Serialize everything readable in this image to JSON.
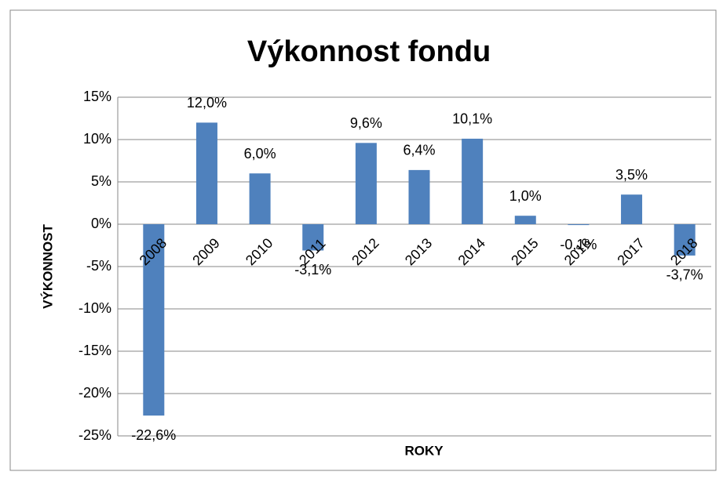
{
  "chart_data": {
    "type": "bar",
    "title": "Výkonnost fondu",
    "x_label": "ROKY",
    "y_label": "VÝKONNOST",
    "categories": [
      "2008",
      "2009",
      "2010",
      "2011",
      "2012",
      "2013",
      "2014",
      "2015",
      "2016",
      "2017",
      "2018"
    ],
    "values": [
      -22.6,
      12.0,
      6.0,
      -3.1,
      9.6,
      6.4,
      10.1,
      1.0,
      -0.1,
      3.5,
      -3.7
    ],
    "value_labels": [
      "-22,6%",
      "12,0%",
      "6,0%",
      "-3,1%",
      "9,6%",
      "6,4%",
      "10,1%",
      "1,0%",
      "-0,1%",
      "3,5%",
      "-3,7%"
    ],
    "color": "#4f81bd",
    "ylim": [
      -25,
      15
    ],
    "yticks": [
      {
        "value": -25,
        "label": "-25%"
      },
      {
        "value": -20,
        "label": "-20%"
      },
      {
        "value": -15,
        "label": "-15%"
      },
      {
        "value": -10,
        "label": "-10%"
      },
      {
        "value": -5,
        "label": "-5%"
      },
      {
        "value": 0,
        "label": "0%"
      },
      {
        "value": 5,
        "label": "5%"
      },
      {
        "value": 10,
        "label": "10%"
      },
      {
        "value": 15,
        "label": "15%"
      }
    ],
    "grid": true
  }
}
